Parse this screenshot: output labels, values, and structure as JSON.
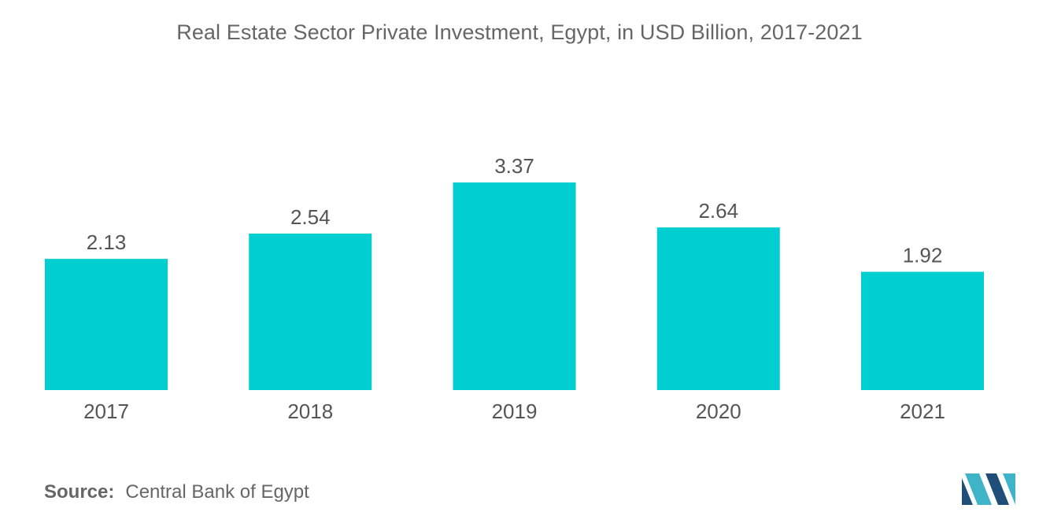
{
  "chart_data": {
    "type": "bar",
    "title": "Real Estate Sector Private Investment, Egypt, in USD Billion, 2017-2021",
    "categories": [
      "2017",
      "2018",
      "2019",
      "2020",
      "2021"
    ],
    "values": [
      2.13,
      2.54,
      3.37,
      2.64,
      1.92
    ],
    "value_labels": [
      "2.13",
      "2.54",
      "3.37",
      "2.64",
      "1.92"
    ],
    "xlabel": "",
    "ylabel": "",
    "ylim": [
      0,
      3.37
    ],
    "grid": false,
    "bar_color": "#00CED1"
  },
  "source": {
    "label": "Source:",
    "text": "Central Bank of Egypt"
  },
  "logo": {
    "icon": "mordor-logo-icon",
    "colors": [
      "#1f4e79",
      "#3fb3c8"
    ]
  }
}
